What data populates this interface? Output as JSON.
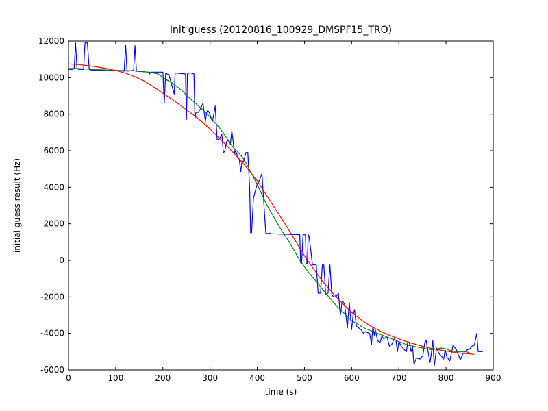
{
  "chart_data": {
    "type": "line",
    "title": "Init guess (20120816_100929_DMSPF15_TRO)",
    "xlabel": "time (s)",
    "ylabel": "initial guess result (Hz)",
    "xlim": [
      0,
      900
    ],
    "ylim": [
      -6000,
      12000
    ],
    "xticks": [
      0,
      100,
      200,
      300,
      400,
      500,
      600,
      700,
      800,
      900
    ],
    "yticks": [
      -6000,
      -4000,
      -2000,
      0,
      2000,
      4000,
      6000,
      8000,
      10000,
      12000
    ],
    "grid": false,
    "legend": "none",
    "series": [
      {
        "color": "#0000ff",
        "x": [
          0,
          8,
          12,
          15,
          18,
          22,
          32,
          35,
          40,
          44,
          50,
          100,
          118,
          121,
          124,
          138,
          141,
          144,
          170,
          172,
          174,
          200,
          203,
          206,
          209,
          213,
          224,
          226,
          228,
          248,
          250,
          252,
          255,
          260,
          266,
          268,
          270,
          275,
          280,
          285,
          290,
          293,
          295,
          298,
          305,
          308,
          311,
          315,
          320,
          325,
          328,
          331,
          335,
          340,
          343,
          346,
          352,
          354,
          357,
          362,
          365,
          368,
          371,
          376,
          380,
          384,
          386,
          388,
          392,
          395,
          400,
          403,
          405,
          410,
          418,
          423,
          425,
          428,
          430,
          490,
          492,
          494,
          497,
          502,
          504,
          506,
          508,
          510,
          517,
          521,
          525,
          529,
          534,
          538,
          541,
          545,
          550,
          554,
          558,
          562,
          567,
          572,
          576,
          580,
          585,
          591,
          595,
          600,
          603,
          606,
          610,
          615,
          620,
          625,
          629,
          633,
          638,
          642,
          645,
          648,
          650,
          655,
          660,
          664,
          668,
          671,
          675,
          680,
          685,
          690,
          694,
          697,
          700,
          705,
          712,
          716,
          719,
          722,
          726,
          729,
          732,
          737,
          745,
          751,
          755,
          758,
          762,
          766,
          769,
          772,
          775,
          780,
          785,
          792,
          795,
          798,
          802,
          808,
          812,
          815,
          818,
          822,
          830,
          836,
          840,
          845,
          850,
          855,
          860,
          865,
          868,
          872,
          878
        ],
        "y": [
          10450,
          10450,
          10500,
          11900,
          10500,
          10450,
          10450,
          11900,
          11900,
          10450,
          10400,
          10400,
          10350,
          11800,
          10350,
          10400,
          11750,
          10350,
          10300,
          10200,
          10300,
          10300,
          8600,
          10250,
          10200,
          10150,
          9100,
          10250,
          10250,
          10200,
          7700,
          10200,
          10250,
          10250,
          10200,
          7750,
          8100,
          8100,
          8300,
          8600,
          7600,
          8100,
          8200,
          8100,
          7600,
          8000,
          8450,
          6600,
          6650,
          6900,
          5900,
          5950,
          6500,
          6600,
          6350,
          7100,
          5850,
          6000,
          5800,
          5500,
          4850,
          5450,
          5400,
          5900,
          5900,
          3900,
          1500,
          1500,
          3400,
          3700,
          4200,
          4300,
          4400,
          4750,
          1500,
          1450,
          1500,
          1450,
          1450,
          1400,
          -150,
          -150,
          1400,
          1400,
          -200,
          -200,
          1400,
          1300,
          -250,
          -250,
          -250,
          -1800,
          -1800,
          -250,
          -250,
          -1850,
          -1800,
          -250,
          -1900,
          -2000,
          -2000,
          -1800,
          -3000,
          -2200,
          -2400,
          -3700,
          -2300,
          -3800,
          -3000,
          -2700,
          -3600,
          -3700,
          -3800,
          -4000,
          -3900,
          -3950,
          -4000,
          -4600,
          -3600,
          -4100,
          -3800,
          -4400,
          -4500,
          -4150,
          -4300,
          -4250,
          -4200,
          -4700,
          -4600,
          -4300,
          -4400,
          -5000,
          -4450,
          -4700,
          -4900,
          -5000,
          -4450,
          -4500,
          -5000,
          -4700,
          -5700,
          -5350,
          -5400,
          -5200,
          -4500,
          -4400,
          -5000,
          -5600,
          -5050,
          -4400,
          -5800,
          -4800,
          -5100,
          -5300,
          -5400,
          -4900,
          -5300,
          -5500,
          -5000,
          -4650,
          -4750,
          -4900,
          -5450,
          -5100,
          -5000,
          -4900,
          -4850,
          -4700,
          -4650,
          -4000,
          -5000,
          -5000,
          -5000
        ]
      },
      {
        "color": "#008000",
        "x": [
          0,
          20,
          50,
          100,
          130,
          150,
          170,
          190,
          200,
          220,
          240,
          260,
          280,
          300,
          310,
          320,
          330,
          340,
          350,
          360,
          370,
          380,
          390,
          400,
          410,
          420,
          430,
          440,
          450,
          460,
          470,
          480,
          490,
          500,
          510,
          520,
          530,
          540,
          550,
          560,
          570,
          580,
          590,
          600,
          610,
          620,
          630,
          640,
          650,
          660,
          670,
          680,
          690,
          700,
          710,
          720,
          730,
          740,
          750,
          760,
          770,
          780,
          790,
          800,
          810,
          820,
          830,
          840,
          850
        ],
        "y": [
          10500,
          10500,
          10450,
          10400,
          10380,
          10350,
          10300,
          10200,
          10000,
          9700,
          9300,
          8800,
          8350,
          7850,
          7550,
          7250,
          6900,
          6500,
          6150,
          5900,
          5600,
          5150,
          4650,
          4150,
          3600,
          3050,
          2600,
          2150,
          1700,
          1300,
          900,
          450,
          0,
          -350,
          -700,
          -1000,
          -1300,
          -1650,
          -1950,
          -2250,
          -2550,
          -2800,
          -3050,
          -3300,
          -3450,
          -3600,
          -3750,
          -3850,
          -3950,
          -4050,
          -4150,
          -4250,
          -4350,
          -4450,
          -4550,
          -4650,
          -4700,
          -4750,
          -4800,
          -4850,
          -4900,
          -4850,
          -4800,
          -4850,
          -4950,
          -5000,
          -5000,
          -5000,
          -5050
        ]
      },
      {
        "color": "#ff0000",
        "x": [
          0,
          20,
          40,
          60,
          80,
          100,
          120,
          140,
          160,
          180,
          200,
          220,
          240,
          260,
          280,
          300,
          320,
          340,
          360,
          380,
          400,
          420,
          440,
          460,
          480,
          500,
          520,
          540,
          560,
          580,
          600,
          620,
          640,
          660,
          680,
          700,
          720,
          740,
          760,
          780,
          800,
          820,
          840,
          860
        ],
        "y": [
          10750,
          10720,
          10660,
          10590,
          10500,
          10390,
          10250,
          10060,
          9820,
          9500,
          9150,
          8800,
          8430,
          8050,
          7650,
          7180,
          6680,
          6150,
          5600,
          5000,
          4350,
          3550,
          2750,
          1950,
          1100,
          250,
          -500,
          -1200,
          -1800,
          -2350,
          -2850,
          -3250,
          -3600,
          -3870,
          -4100,
          -4300,
          -4480,
          -4630,
          -4770,
          -4880,
          -4970,
          -5050,
          -5100,
          -5150
        ]
      }
    ]
  }
}
